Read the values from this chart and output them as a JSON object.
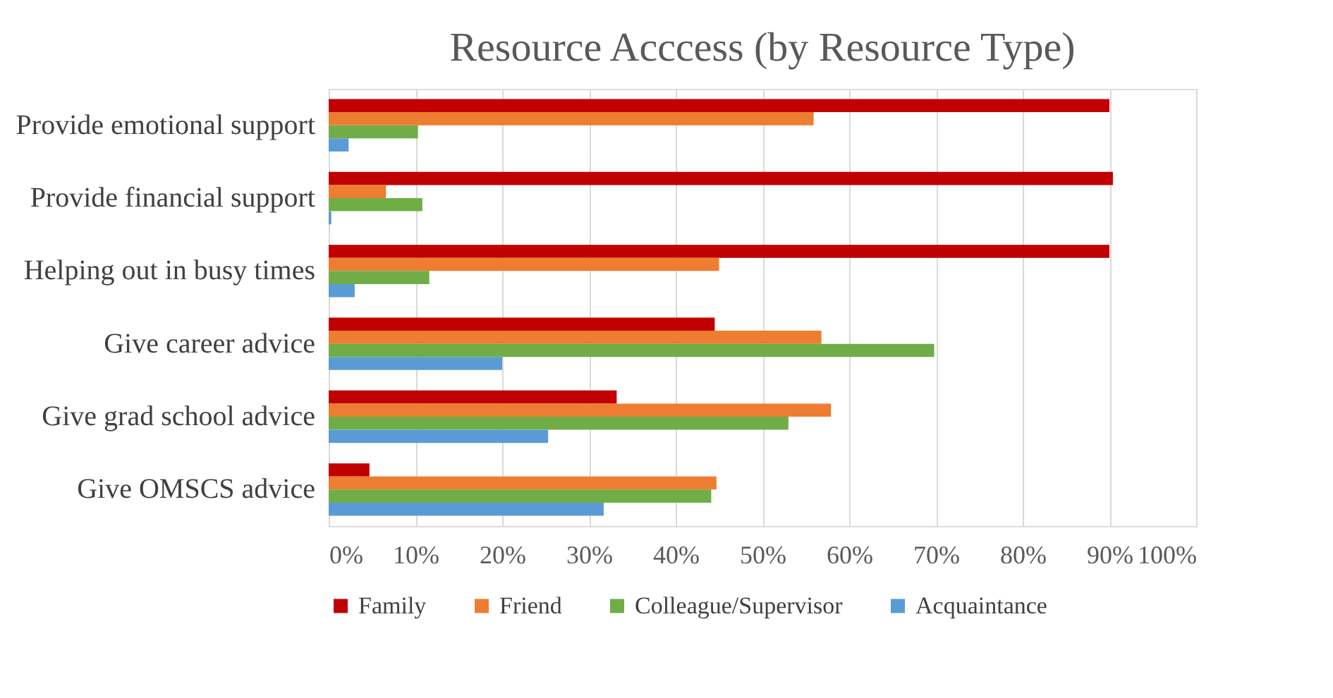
{
  "chart_data": {
    "type": "bar",
    "orientation": "horizontal",
    "title": "Resource Acccess (by Resource Type)",
    "categories": [
      "Provide emotional support",
      "Provide financial support",
      "Helping out in busy times",
      "Give career advice",
      "Give grad school advice",
      "Give OMSCS advice"
    ],
    "series": [
      {
        "name": "Family",
        "color": "#c00000",
        "values": [
          90.0,
          90.4,
          90.0,
          44.5,
          33.2,
          4.7
        ]
      },
      {
        "name": "Friend",
        "color": "#ed7d31",
        "values": [
          55.9,
          6.6,
          45.0,
          56.8,
          57.9,
          44.7
        ]
      },
      {
        "name": "Colleague/Supervisor",
        "color": "#70ad47",
        "values": [
          10.3,
          10.8,
          11.6,
          69.8,
          53.0,
          44.1
        ]
      },
      {
        "name": "Acquaintance",
        "color": "#5b9bd5",
        "values": [
          2.3,
          0.3,
          3.0,
          20.0,
          25.3,
          31.7
        ]
      }
    ],
    "xlim": [
      0,
      100
    ],
    "xticks": [
      {
        "value": 0,
        "label": "0%"
      },
      {
        "value": 10,
        "label": "10%"
      },
      {
        "value": 20,
        "label": "20%"
      },
      {
        "value": 30,
        "label": "30%"
      },
      {
        "value": 40,
        "label": "40%"
      },
      {
        "value": 50,
        "label": "50%"
      },
      {
        "value": 60,
        "label": "60%"
      },
      {
        "value": 70,
        "label": "70%"
      },
      {
        "value": 80,
        "label": "80%"
      },
      {
        "value": 90,
        "label": "90%"
      },
      {
        "value": 100,
        "label": "100%"
      }
    ],
    "grid": "x",
    "legend": "bottom"
  }
}
